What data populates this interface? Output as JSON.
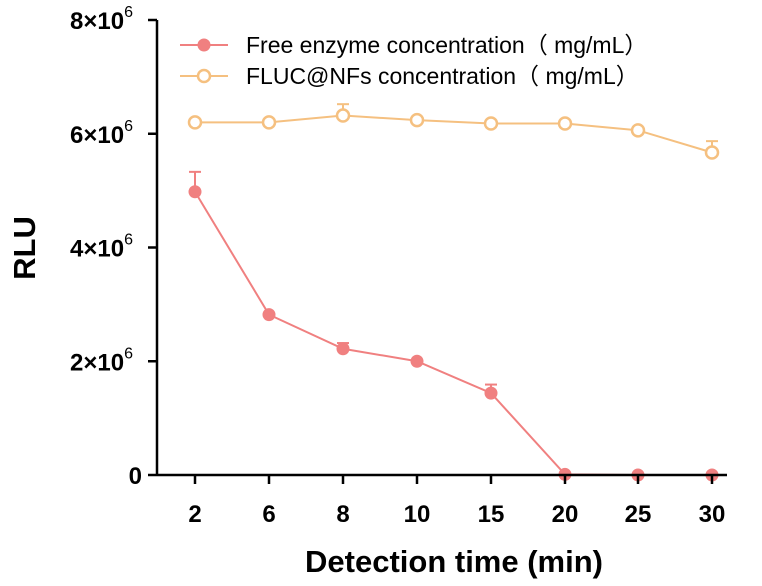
{
  "chart_data": {
    "type": "line",
    "xlabel": "Detection time (min)",
    "ylabel": "RLU",
    "categories": [
      "2",
      "6",
      "8",
      "10",
      "15",
      "20",
      "25",
      "30"
    ],
    "ylim": [
      0,
      8000000
    ],
    "yticks": [
      {
        "value": 0,
        "label": "0"
      },
      {
        "value": 2000000,
        "label": "2×10",
        "exp": "6"
      },
      {
        "value": 4000000,
        "label": "4×10",
        "exp": "6"
      },
      {
        "value": 6000000,
        "label": "6×10",
        "exp": "6"
      },
      {
        "value": 8000000,
        "label": "8×10",
        "exp": "6"
      }
    ],
    "legend_position": "top-left",
    "series": [
      {
        "name": "Free enzyme concentration（ mg/mL）",
        "color": "#F08080",
        "marker": "filled-circle",
        "values": [
          4980000,
          2820000,
          2220000,
          2000000,
          1440000,
          10000,
          0,
          0
        ],
        "errors": [
          350000,
          0,
          100000,
          0,
          150000,
          0,
          0,
          0
        ]
      },
      {
        "name": "FLUC@NFs concentration（ mg/mL）",
        "color": "#F5C080",
        "marker": "open-circle",
        "values": [
          6200000,
          6200000,
          6320000,
          6240000,
          6180000,
          6180000,
          6060000,
          5670000
        ],
        "errors": [
          0,
          0,
          200000,
          0,
          0,
          0,
          0,
          200000
        ]
      }
    ]
  }
}
